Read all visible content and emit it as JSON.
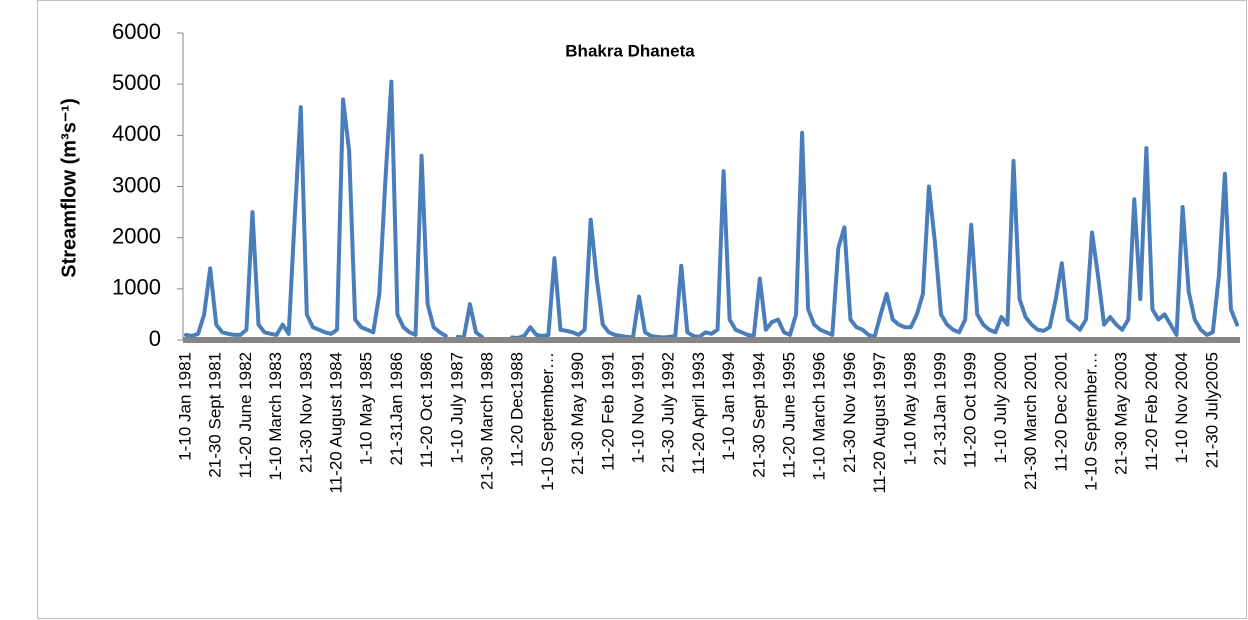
{
  "chart_data": {
    "type": "line",
    "title": "Bhakra Dhaneta",
    "y_label": "Streamflow (m³s⁻¹)",
    "color": "#4a7ebb",
    "ylim": [
      0,
      6000
    ],
    "yticks": [
      0,
      1000,
      2000,
      3000,
      4000,
      5000,
      6000
    ],
    "categories": [
      "1-10 Jan 1981",
      null,
      null,
      null,
      null,
      "21-30 Sept 1981",
      null,
      null,
      null,
      null,
      "11-20 June 1982",
      null,
      null,
      null,
      null,
      "1-10 March 1983",
      null,
      null,
      null,
      null,
      "21-30 Nov 1983",
      null,
      null,
      null,
      null,
      "11-20 August 1984",
      null,
      null,
      null,
      null,
      "1-10 May 1985",
      null,
      null,
      null,
      null,
      "21-31Jan 1986",
      null,
      null,
      null,
      null,
      "11-20 Oct 1986",
      null,
      null,
      null,
      null,
      "1-10 July 1987",
      null,
      null,
      null,
      null,
      "21-30 March 1988",
      null,
      null,
      null,
      null,
      "11-20 Dec1988",
      null,
      null,
      null,
      null,
      "1-10 September…",
      null,
      null,
      null,
      null,
      "21-30 May 1990",
      null,
      null,
      null,
      null,
      "11-20 Feb 1991",
      null,
      null,
      null,
      null,
      "1-10 Nov 1991",
      null,
      null,
      null,
      null,
      "21-30 July 1992",
      null,
      null,
      null,
      null,
      "11-20 April 1993",
      null,
      null,
      null,
      null,
      "1-10 Jan 1994",
      null,
      null,
      null,
      null,
      "21-30 Sept 1994",
      null,
      null,
      null,
      null,
      "11-20 June 1995",
      null,
      null,
      null,
      null,
      "1-10 March 1996",
      null,
      null,
      null,
      null,
      "21-30 Nov 1996",
      null,
      null,
      null,
      null,
      "11-20 August 1997",
      null,
      null,
      null,
      null,
      "1-10 May 1998",
      null,
      null,
      null,
      null,
      "21-31Jan 1999",
      null,
      null,
      null,
      null,
      "11-20 Oct 1999",
      null,
      null,
      null,
      null,
      "1-10 July 2000",
      null,
      null,
      null,
      null,
      "21-30 March 2001",
      null,
      null,
      null,
      null,
      "11-20 Dec 2001",
      null,
      null,
      null,
      null,
      "1-10 September…",
      null,
      null,
      null,
      null,
      "21-30 May 2003",
      null,
      null,
      null,
      null,
      "11-20 Feb 2004",
      null,
      null,
      null,
      null,
      "1-10 Nov 2004",
      null,
      null,
      null,
      null,
      "21-30 July2005",
      null,
      null,
      null,
      null
    ],
    "values": [
      100,
      80,
      120,
      500,
      1400,
      300,
      150,
      120,
      100,
      100,
      200,
      2500,
      300,
      150,
      120,
      100,
      300,
      120,
      2400,
      4550,
      500,
      250,
      200,
      150,
      120,
      200,
      4700,
      3700,
      400,
      250,
      200,
      150,
      900,
      3100,
      5050,
      500,
      250,
      150,
      100,
      3600,
      700,
      250,
      150,
      80,
      null,
      60,
      50,
      700,
      150,
      60,
      null,
      null,
      null,
      null,
      50,
      40,
      80,
      250,
      100,
      80,
      100,
      1600,
      200,
      180,
      150,
      100,
      200,
      2350,
      1200,
      300,
      150,
      100,
      80,
      60,
      50,
      850,
      150,
      80,
      60,
      50,
      60,
      80,
      1450,
      150,
      80,
      60,
      150,
      120,
      200,
      3300,
      400,
      200,
      150,
      100,
      80,
      1200,
      200,
      350,
      400,
      150,
      100,
      500,
      4050,
      600,
      300,
      200,
      150,
      100,
      1800,
      2200,
      400,
      250,
      200,
      100,
      60,
      500,
      900,
      400,
      300,
      250,
      250,
      500,
      900,
      3000,
      1900,
      500,
      300,
      200,
      150,
      400,
      2250,
      500,
      300,
      200,
      150,
      450,
      300,
      3500,
      800,
      450,
      300,
      200,
      180,
      250,
      800,
      1500,
      400,
      300,
      200,
      400,
      2100,
      1250,
      300,
      450,
      300,
      200,
      400,
      2750,
      800,
      3750,
      600,
      400,
      500,
      300,
      100,
      2600,
      950,
      400,
      200,
      100,
      150,
      1250,
      3250,
      600,
      300
    ]
  }
}
